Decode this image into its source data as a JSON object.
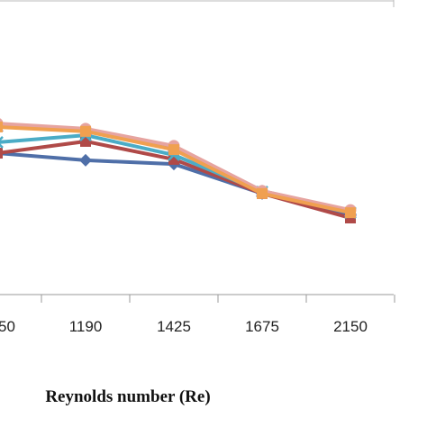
{
  "chart_data": {
    "type": "line",
    "x_label": "Reynolds number (Re)",
    "categories": [
      "50",
      "1190",
      "1425",
      "1675",
      "2150"
    ],
    "ylim": [
      0,
      10
    ],
    "series": [
      {
        "color": "#4f6fa8",
        "marker": "diamond",
        "values": [
          4.8,
          4.56,
          4.43,
          3.43,
          2.72
        ]
      },
      {
        "color": "#b04a48",
        "marker": "square",
        "values": [
          4.8,
          5.2,
          4.59,
          3.43,
          2.6
        ]
      },
      {
        "color": "#4bacc6",
        "marker": "x",
        "values": [
          5.17,
          5.41,
          4.74,
          3.49,
          2.78
        ]
      },
      {
        "color": "#9b86b8",
        "marker": "triangle",
        "values": [
          5.72,
          5.6,
          5.02,
          3.52,
          2.84
        ]
      },
      {
        "color": "#e6a4a0",
        "marker": "circle",
        "values": [
          5.81,
          5.63,
          5.05,
          3.52,
          2.87
        ]
      },
      {
        "color": "#f0a050",
        "marker": "square",
        "values": [
          5.69,
          5.54,
          4.92,
          3.43,
          2.78
        ]
      }
    ]
  }
}
